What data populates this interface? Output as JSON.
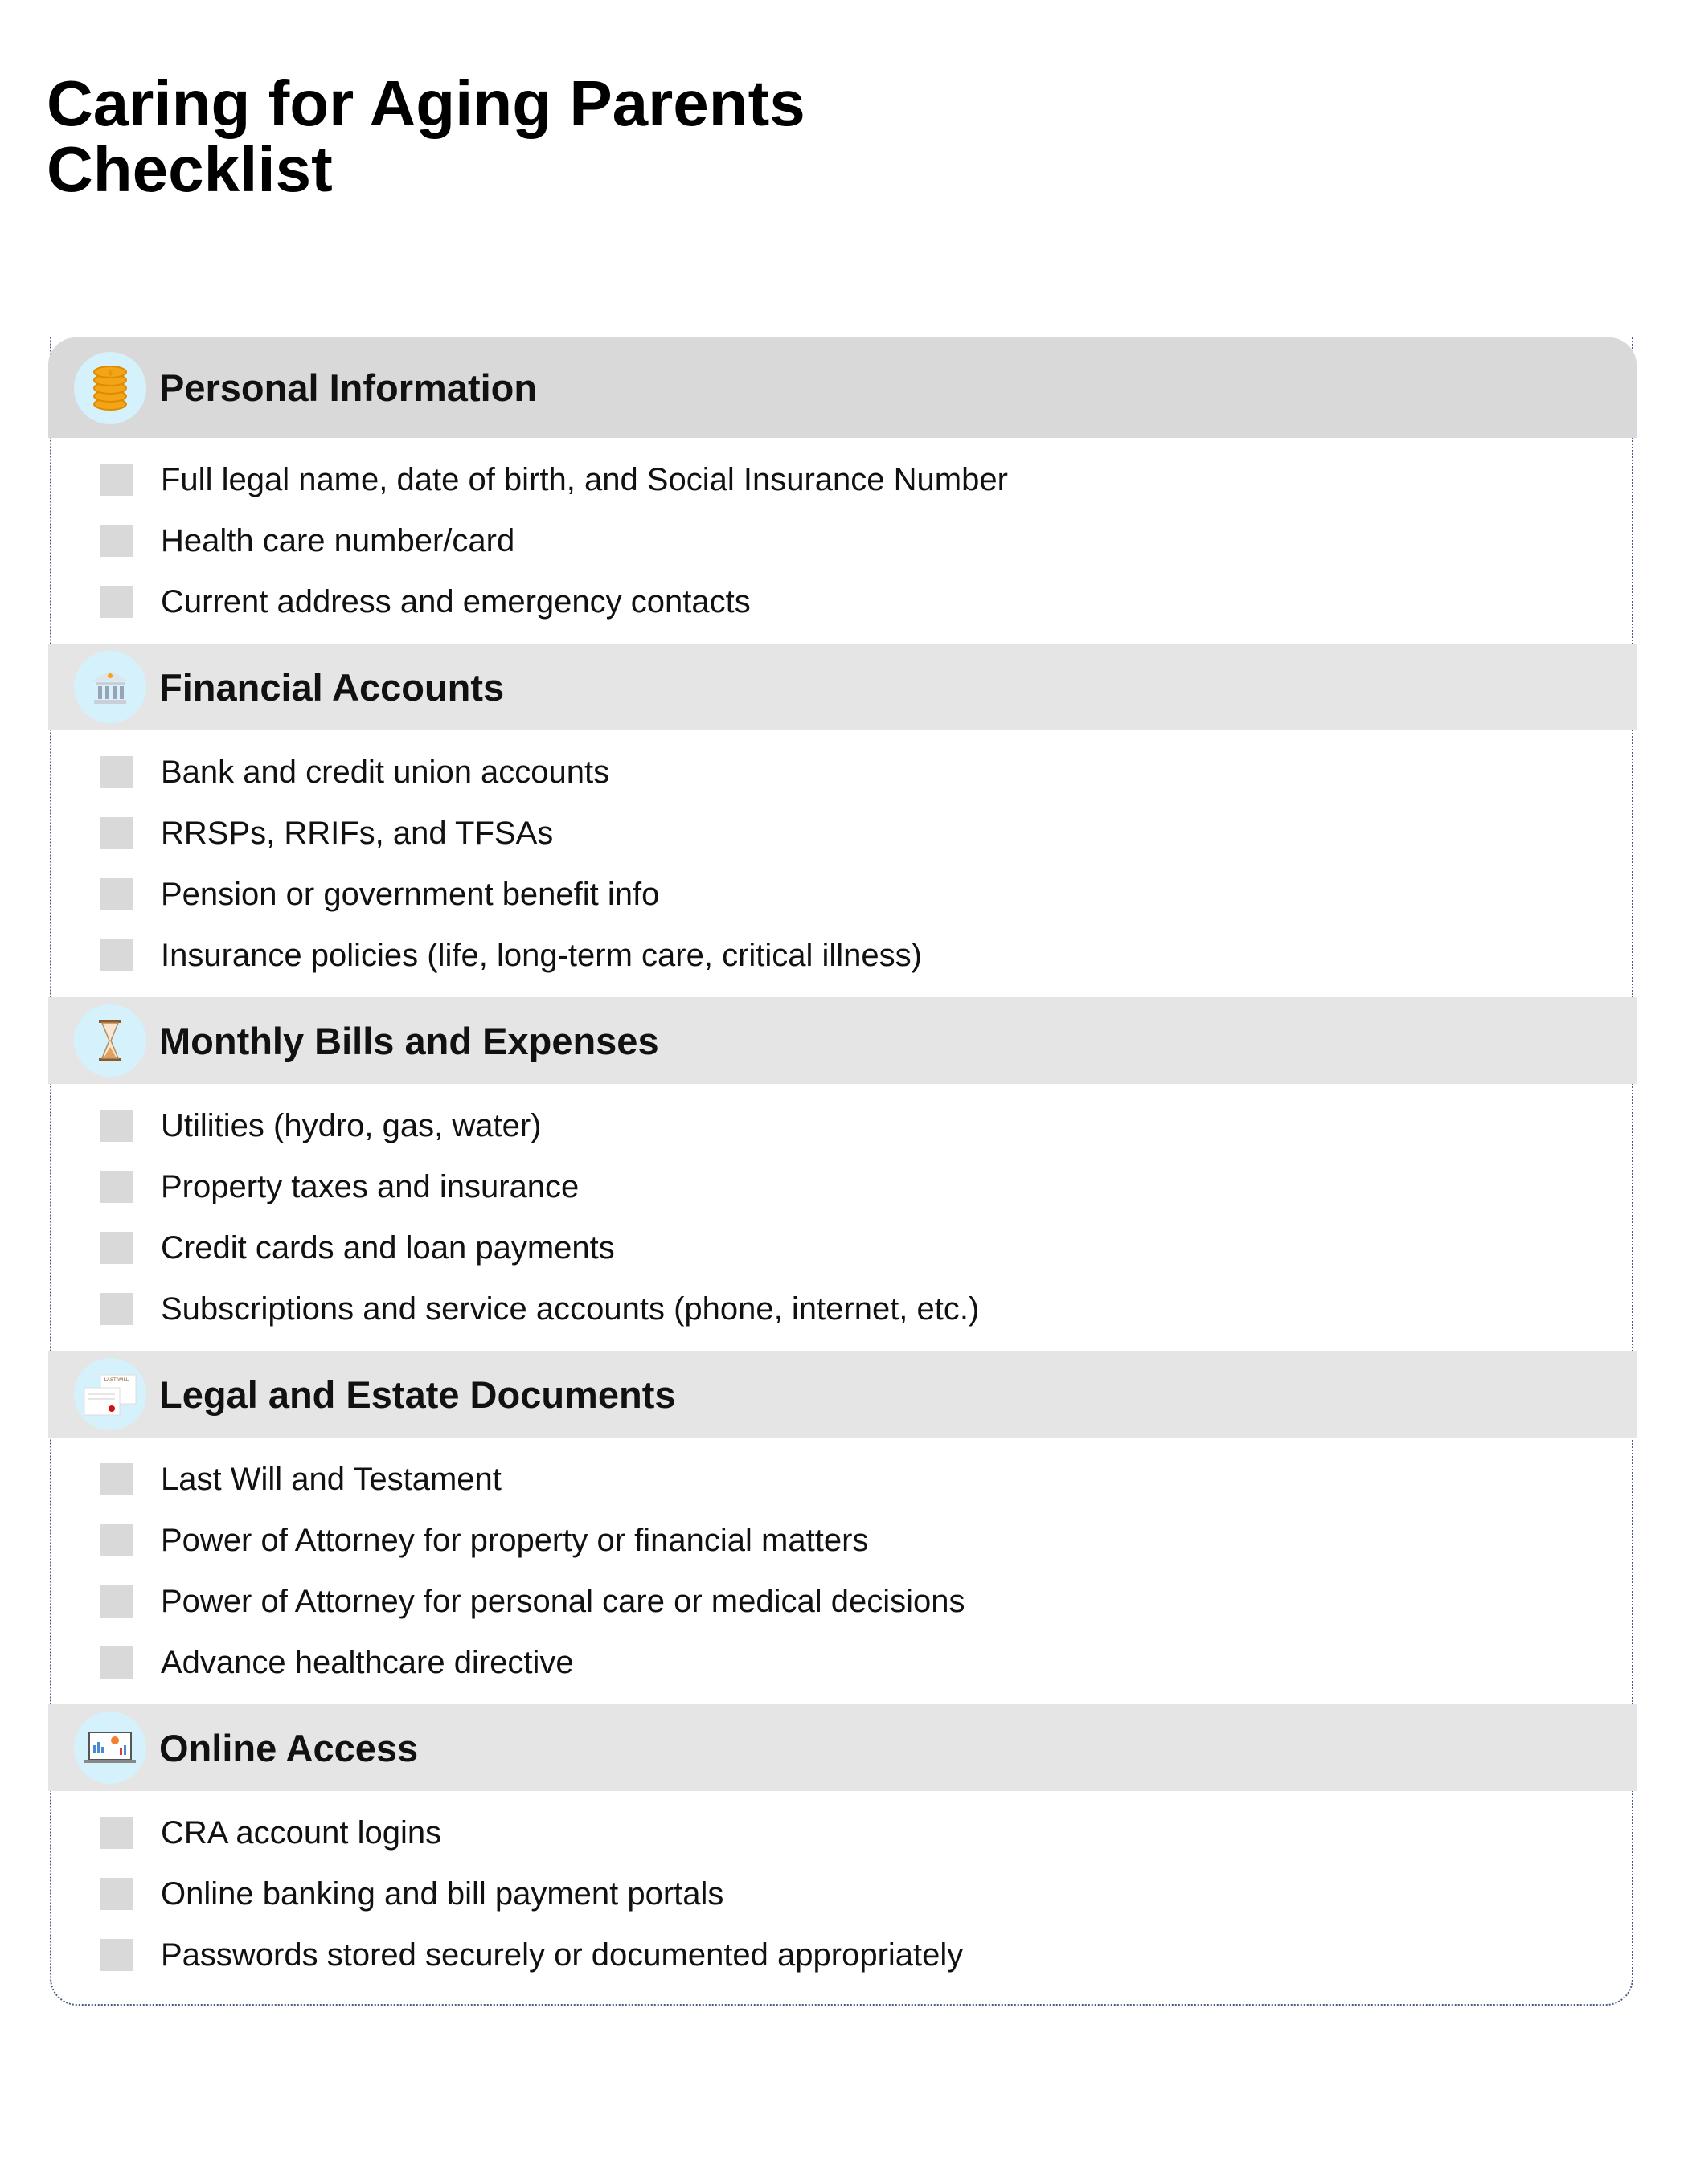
{
  "title": "Caring for Aging Parents Checklist",
  "colors": {
    "header_first": "#d9d9d9",
    "header": "#e5e5e5",
    "icon_circle": "#d5f1fb",
    "checkbox": "#d9d9d9",
    "border": "#4a5a8a"
  },
  "sections": [
    {
      "title": "Personal Information",
      "icon": "coins-icon",
      "items": [
        {
          "label": "Full legal name, date of birth, and Social Insurance Number",
          "checked": false
        },
        {
          "label": "Health care number/card",
          "checked": false
        },
        {
          "label": "Current address and emergency contacts",
          "checked": false
        }
      ]
    },
    {
      "title": "Financial Accounts",
      "icon": "bank-icon",
      "items": [
        {
          "label": "Bank and credit union accounts",
          "checked": false
        },
        {
          "label": "RRSPs, RRIFs, and TFSAs",
          "checked": false
        },
        {
          "label": "Pension or government benefit info",
          "checked": false
        },
        {
          "label": "Insurance policies (life, long-term care, critical illness)",
          "checked": false
        }
      ]
    },
    {
      "title": "Monthly Bills and Expenses",
      "icon": "hourglass-icon",
      "items": [
        {
          "label": "Utilities (hydro, gas, water)",
          "checked": false
        },
        {
          "label": "Property taxes and insurance",
          "checked": false
        },
        {
          "label": "Credit cards and loan payments",
          "checked": false
        },
        {
          "label": "Subscriptions and service accounts (phone, internet, etc.)",
          "checked": false
        }
      ]
    },
    {
      "title": "Legal and Estate Documents",
      "icon": "will-document-icon",
      "icon_text": "LAST WILL",
      "items": [
        {
          "label": "Last Will and Testament",
          "checked": false
        },
        {
          "label": "Power of Attorney for property or financial matters",
          "checked": false
        },
        {
          "label": "Power of Attorney for personal care or medical decisions",
          "checked": false
        },
        {
          "label": "Advance healthcare directive",
          "checked": false
        }
      ]
    },
    {
      "title": "Online Access",
      "icon": "laptop-dashboard-icon",
      "items": [
        {
          "label": "CRA account logins",
          "checked": false
        },
        {
          "label": "Online banking and bill payment portals",
          "checked": false
        },
        {
          "label": "Passwords stored securely or documented appropriately",
          "checked": false
        }
      ]
    }
  ]
}
